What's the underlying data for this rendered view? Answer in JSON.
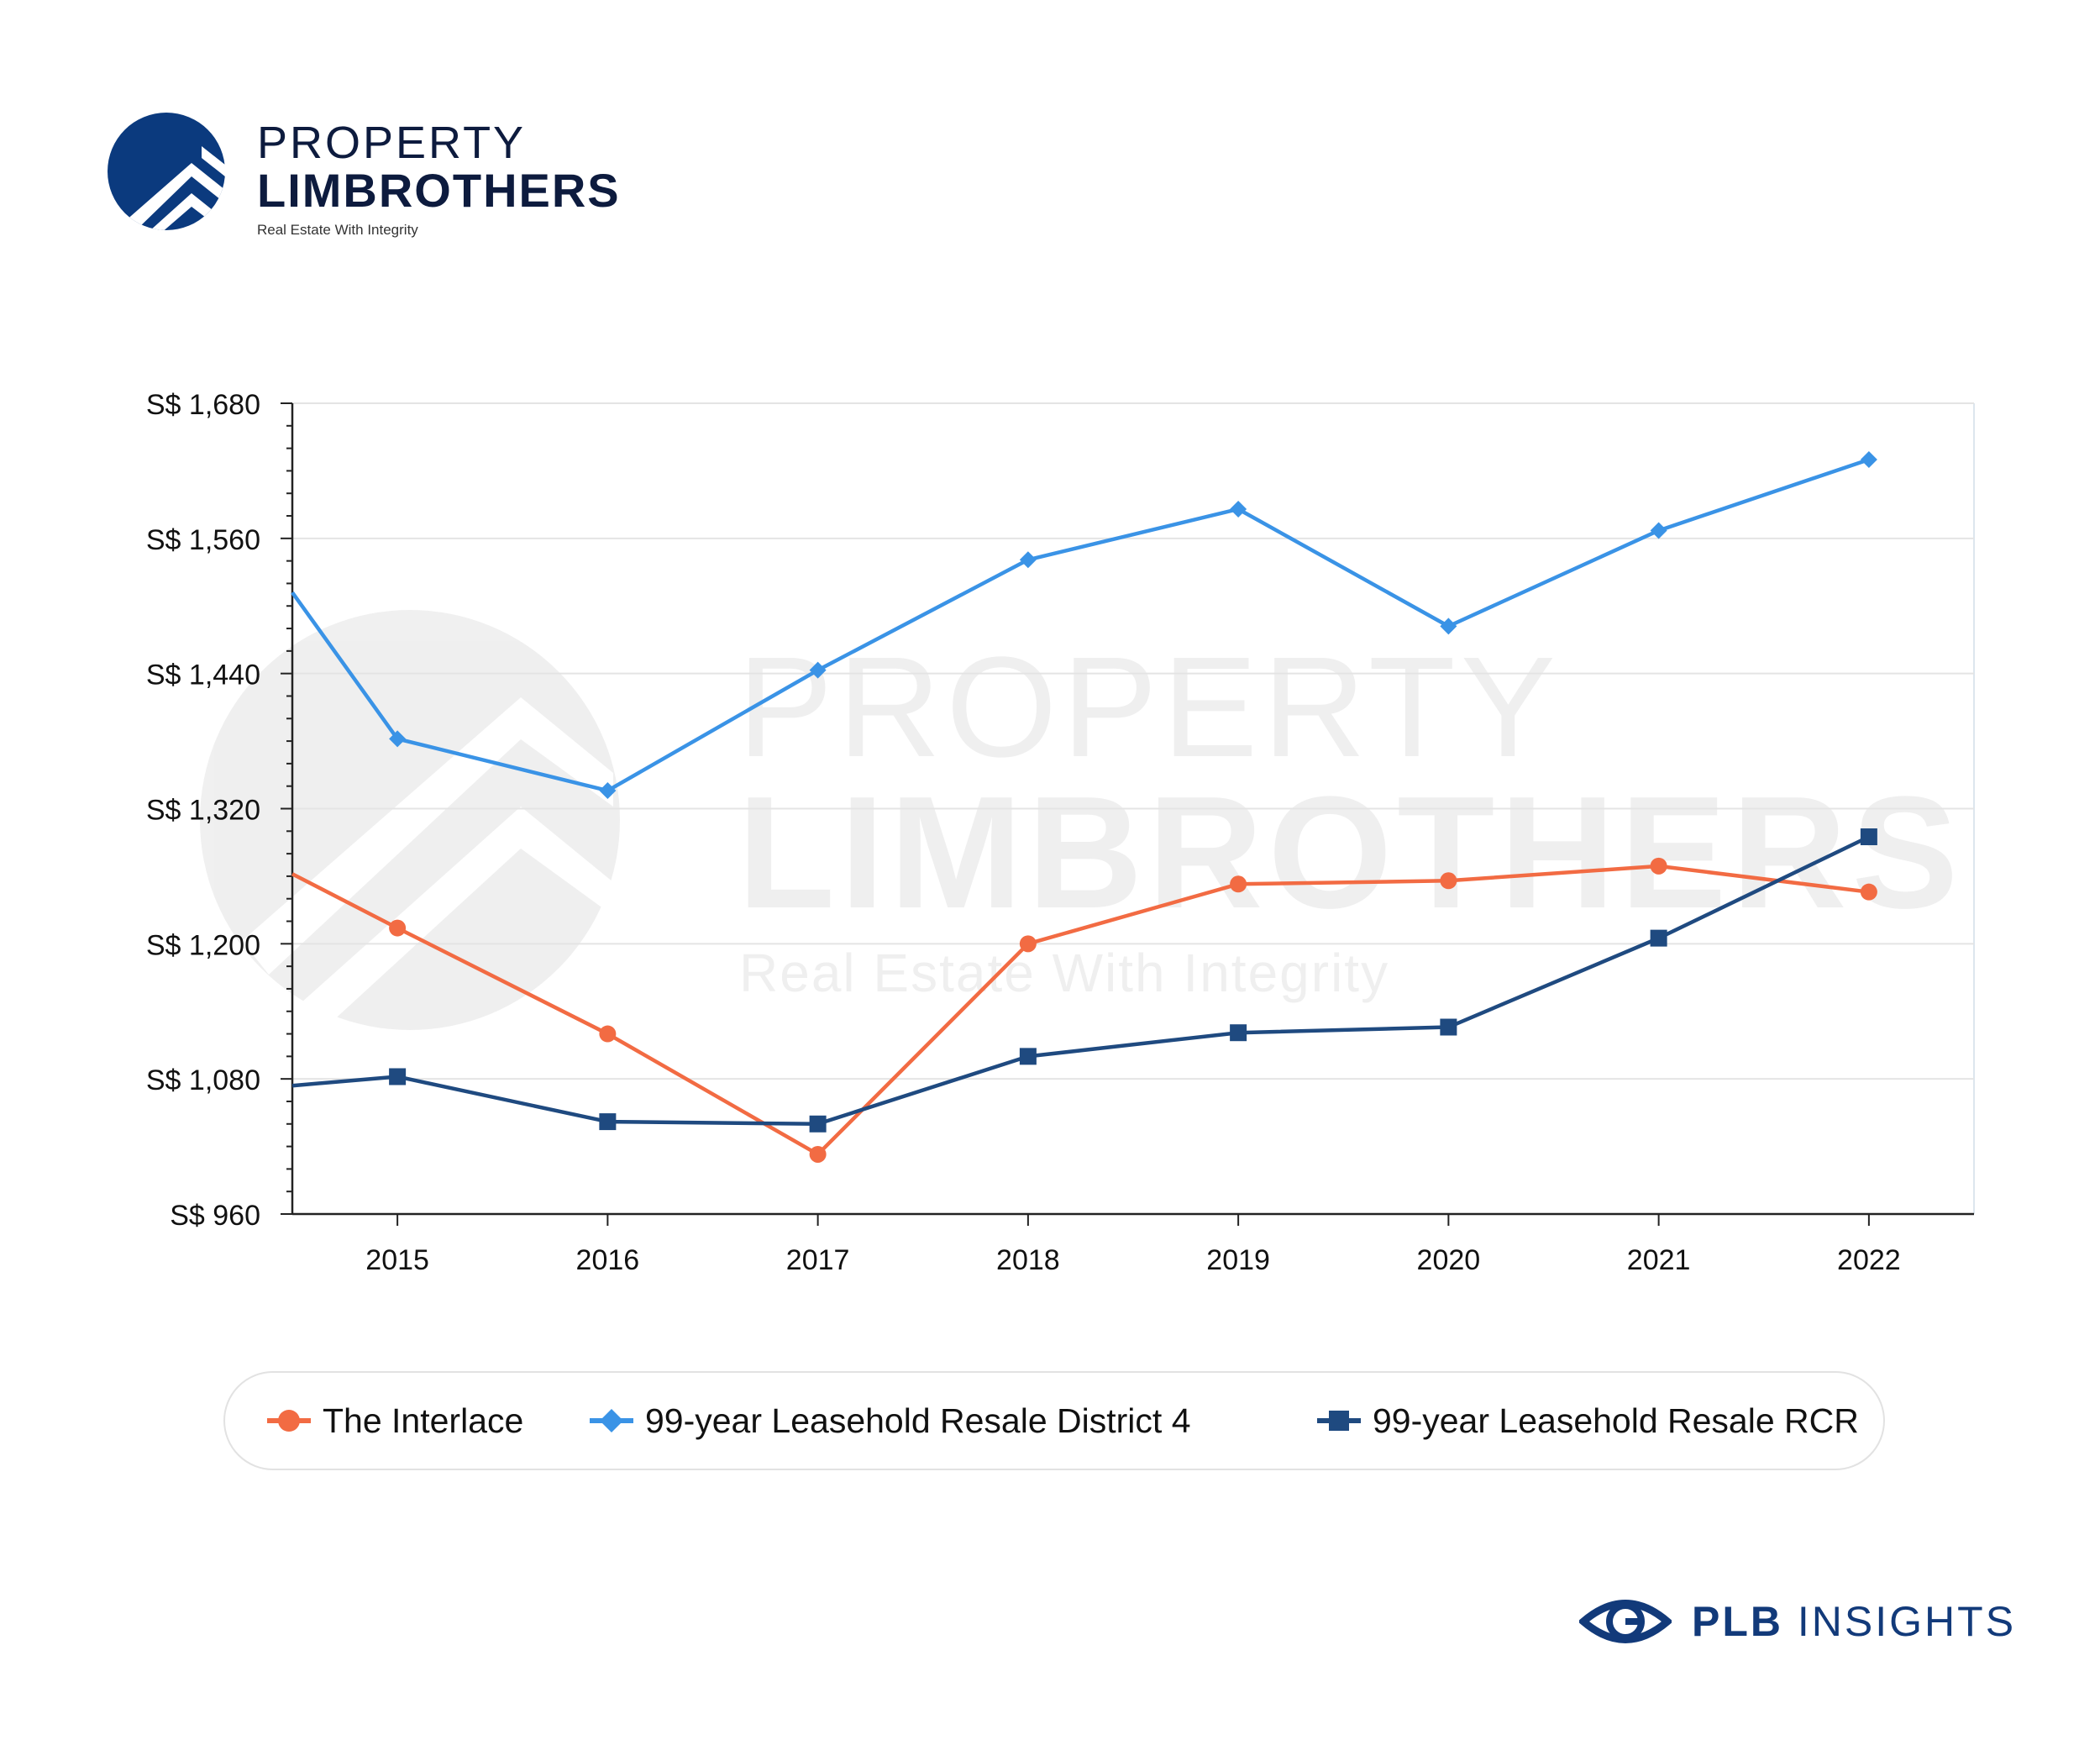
{
  "brand": {
    "line1": "PROPERTY",
    "line2": "LIMBROTHERS",
    "tagline": "Real Estate With Integrity",
    "color": "#0b3a7e"
  },
  "watermark": {
    "line1": "PROPERTY",
    "line2": "LIMBROTHERS",
    "tagline": "Real Estate With Integrity"
  },
  "chart_data": {
    "type": "line",
    "title": "",
    "xlabel": "",
    "ylabel": "",
    "categories": [
      "2015",
      "2016",
      "2017",
      "2018",
      "2019",
      "2020",
      "2021",
      "2022"
    ],
    "x_range": [
      2014.5,
      2022.5
    ],
    "ylim": [
      960,
      1680
    ],
    "y_ticks": [
      960,
      1080,
      1200,
      1320,
      1440,
      1560,
      1680
    ],
    "y_tick_labels": [
      "S$ 960",
      "S$ 1,080",
      "S$ 1,200",
      "S$ 1,320",
      "S$ 1,440",
      "S$ 1,560",
      "S$ 1,680"
    ],
    "grid": true,
    "legend_position": "bottom",
    "series": [
      {
        "name": "The Interlace",
        "color": "#f26b43",
        "marker": "circle",
        "x": [
          2014.5,
          2015,
          2016,
          2017,
          2018,
          2019,
          2020,
          2021,
          2022
        ],
        "values": [
          1262,
          1214,
          1120,
          1013,
          1200,
          1253,
          1256,
          1269,
          1246
        ]
      },
      {
        "name": "99-year Leasehold Resale District 4",
        "color": "#3a93e6",
        "marker": "diamond",
        "x": [
          2014.5,
          2015,
          2016,
          2017,
          2018,
          2019,
          2020,
          2021,
          2022
        ],
        "values": [
          1512,
          1382,
          1336,
          1443,
          1541,
          1586,
          1482,
          1567,
          1630
        ]
      },
      {
        "name": "99-year Leasehold Resale RCR",
        "color": "#1f4a80",
        "marker": "square",
        "x": [
          2014.5,
          2015,
          2016,
          2017,
          2018,
          2019,
          2020,
          2021,
          2022
        ],
        "values": [
          1074,
          1082,
          1042,
          1040,
          1100,
          1121,
          1126,
          1205,
          1295
        ]
      }
    ]
  },
  "legend": {
    "items": [
      {
        "label": "The Interlace",
        "color": "#f26b43",
        "marker": "circle"
      },
      {
        "label": "99-year Leasehold Resale District 4",
        "color": "#3a93e6",
        "marker": "diamond"
      },
      {
        "label": "99-year Leasehold Resale RCR",
        "color": "#1f4a80",
        "marker": "square"
      }
    ]
  },
  "footer": {
    "insights_bold": "PLB",
    "insights_rest": "INSIGHTS",
    "color": "#123a7a"
  }
}
